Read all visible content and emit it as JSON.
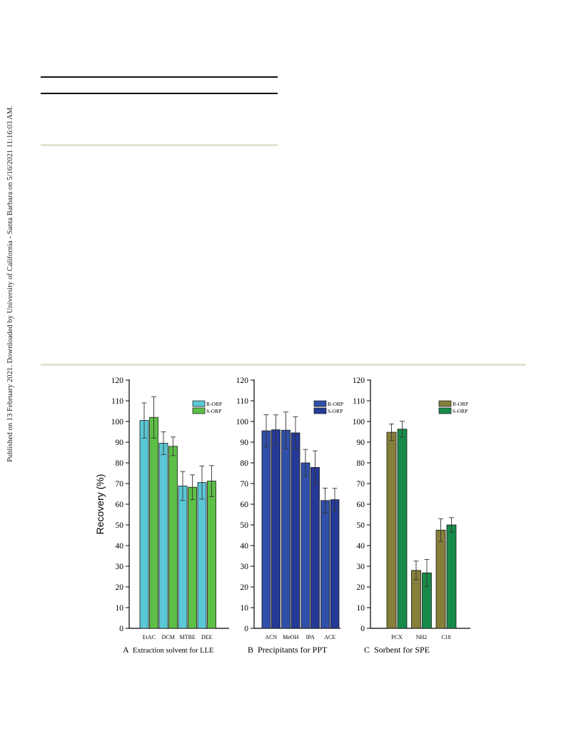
{
  "sidebar_text": "Published on 13 February 2021. Downloaded by University of California - Santa Barbara on 5/16/2021 11:16:03 AM.",
  "colors": {
    "rule_black": "#111111",
    "rule_beige": "#e4e2cf",
    "panelA_R": "#5bc8d6",
    "panelA_S": "#5dbf45",
    "panelB_R": "#2f4fa8",
    "panelB_S": "#253a97",
    "panelC_R": "#857f3a",
    "panelC_S": "#178a4a"
  },
  "chart_data": [
    {
      "type": "bar",
      "panel_letter": "A",
      "xlabel": "Extraction solvent for LLE",
      "ylabel": "Recovery (%)",
      "ylim": [
        0,
        120
      ],
      "yticks": [
        0,
        10,
        20,
        30,
        40,
        50,
        60,
        70,
        80,
        90,
        100,
        110,
        120
      ],
      "categories": [
        "EtAC",
        "DCM",
        "MTBE",
        "DEE"
      ],
      "legend_position": "top-right",
      "series": [
        {
          "name": "R-ORP",
          "color": "#5bc8d6",
          "values": [
            100.5,
            89.5,
            68.8,
            70.5
          ],
          "errors": [
            8.5,
            5.5,
            7.0,
            8.0
          ]
        },
        {
          "name": "S-ORP",
          "color": "#5dbf45",
          "values": [
            102.0,
            88.0,
            68.2,
            71.2
          ],
          "errors": [
            10.0,
            4.5,
            6.0,
            7.5
          ]
        }
      ]
    },
    {
      "type": "bar",
      "panel_letter": "B",
      "xlabel": "Precipitants for PPT",
      "ylabel": "",
      "ylim": [
        0,
        120
      ],
      "yticks": [
        0,
        10,
        20,
        30,
        40,
        50,
        60,
        70,
        80,
        90,
        100,
        110,
        120
      ],
      "categories": [
        "ACN",
        "MeOH",
        "IPA",
        "ACE"
      ],
      "legend_position": "top-right",
      "series": [
        {
          "name": "R-ORP",
          "color": "#2f4fa8",
          "values": [
            95.5,
            95.8,
            80.0,
            61.8
          ],
          "errors": [
            7.8,
            8.8,
            6.5,
            6.0
          ]
        },
        {
          "name": "S-ORP",
          "color": "#253a97",
          "values": [
            96.0,
            94.5,
            77.8,
            62.2
          ],
          "errors": [
            7.2,
            7.8,
            8.0,
            5.5
          ]
        }
      ]
    },
    {
      "type": "bar",
      "panel_letter": "C",
      "xlabel": "Sorbent for SPE",
      "ylabel": "",
      "ylim": [
        0,
        120
      ],
      "yticks": [
        0,
        10,
        20,
        30,
        40,
        50,
        60,
        70,
        80,
        90,
        100,
        110,
        120
      ],
      "categories": [
        "PCX",
        "NH2",
        "C18"
      ],
      "legend_position": "top-right",
      "series": [
        {
          "name": "R-ORP",
          "color": "#857f3a",
          "values": [
            94.8,
            28.0,
            47.5
          ],
          "errors": [
            4.0,
            4.5,
            5.5
          ]
        },
        {
          "name": "S-ORP",
          "color": "#178a4a",
          "values": [
            96.3,
            26.8,
            50.0
          ],
          "errors": [
            3.8,
            6.5,
            3.5
          ]
        }
      ]
    }
  ]
}
